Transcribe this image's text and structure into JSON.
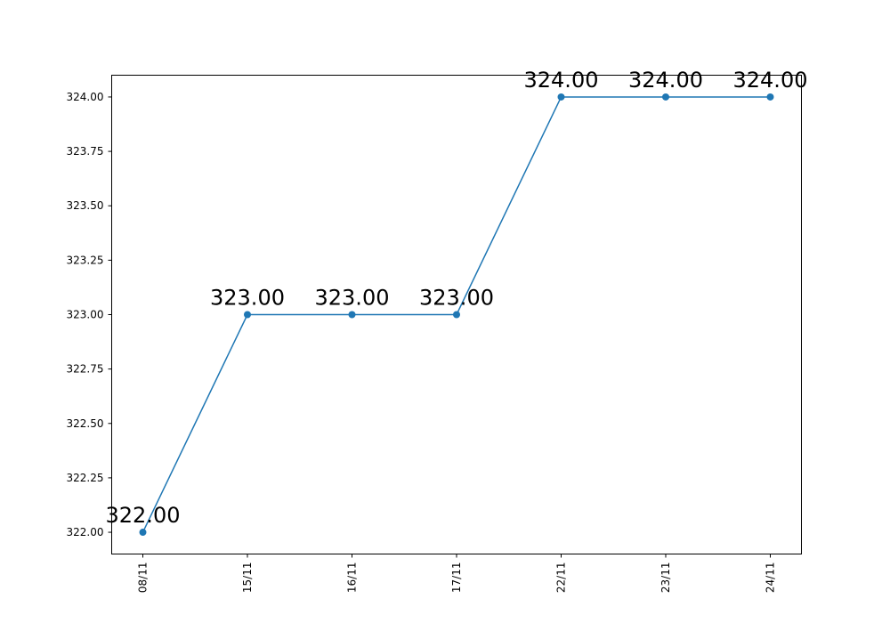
{
  "chart_data": {
    "type": "line",
    "title": "",
    "xlabel": "",
    "ylabel": "",
    "categories": [
      "08/11",
      "15/11",
      "16/11",
      "17/11",
      "22/11",
      "23/11",
      "24/11"
    ],
    "series": [
      {
        "values": [
          322.0,
          323.0,
          323.0,
          323.0,
          324.0,
          324.0,
          324.0
        ]
      }
    ],
    "data_labels": [
      "322.00",
      "323.00",
      "323.00",
      "323.00",
      "324.00",
      "324.00",
      "324.00"
    ],
    "yticks": [
      "322.00",
      "322.25",
      "322.50",
      "322.75",
      "323.00",
      "323.25",
      "323.50",
      "323.75",
      "324.00"
    ],
    "ylim": [
      321.9,
      324.1
    ],
    "grid": false,
    "line_color": "#1f77b4"
  }
}
